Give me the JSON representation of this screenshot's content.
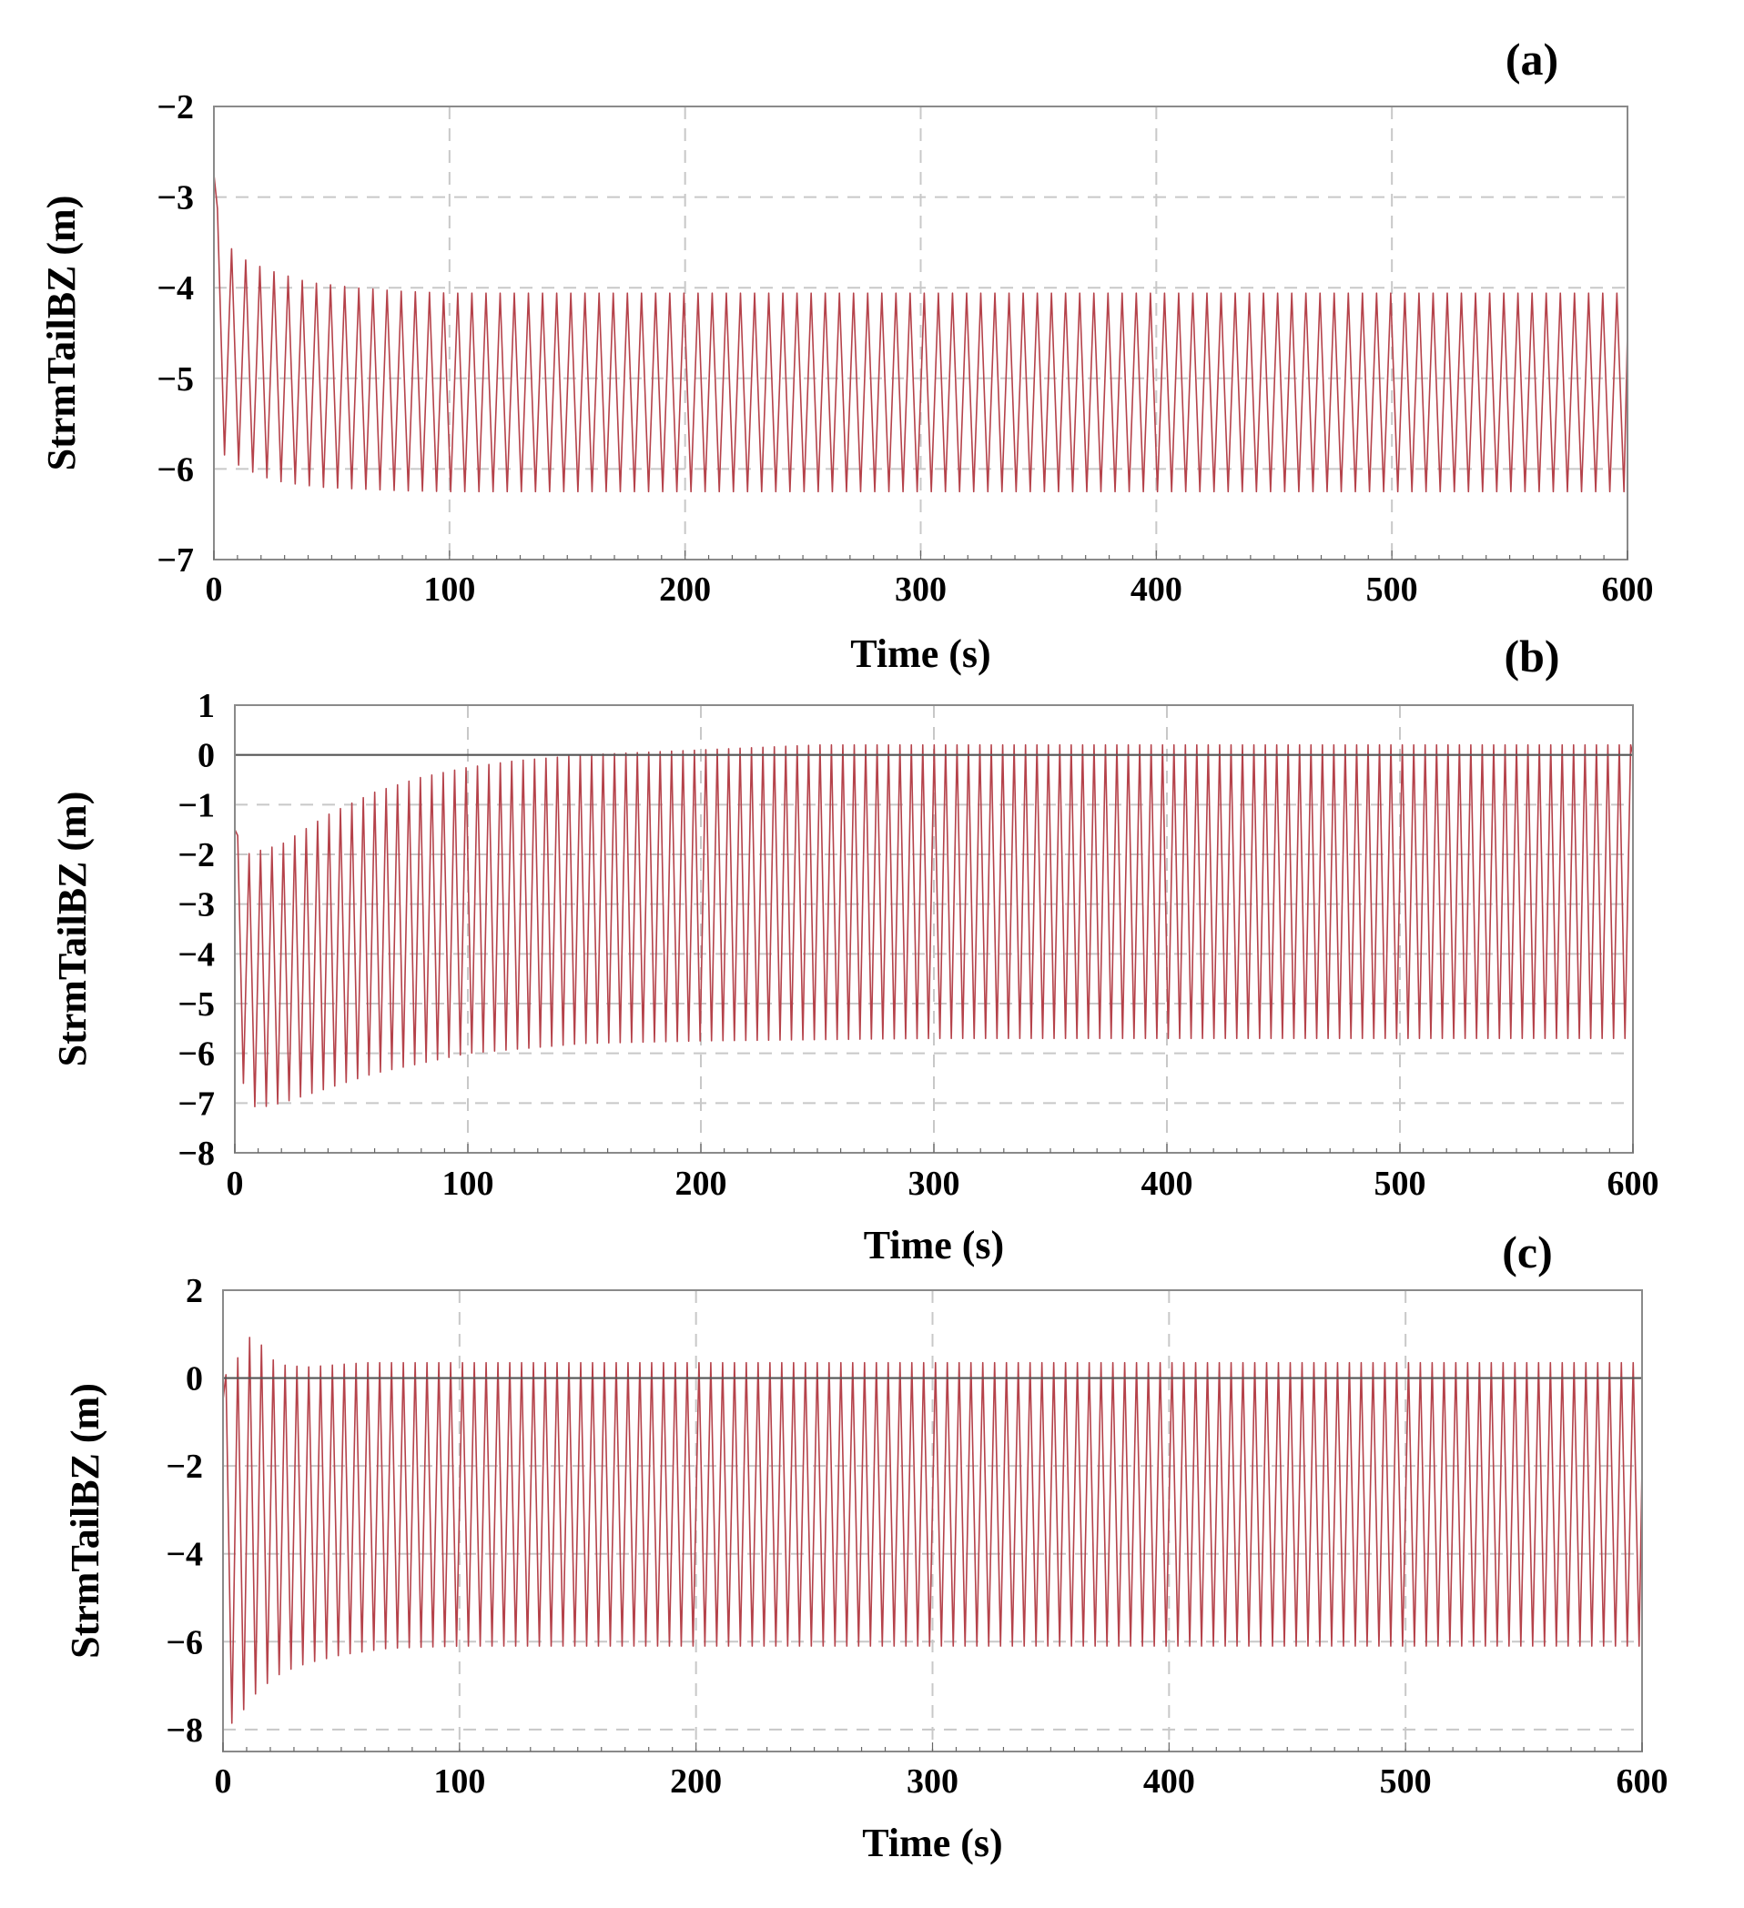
{
  "colors": {
    "series": "#b5424a",
    "grid": "#c8c8c8",
    "frame": "#8a8a8a",
    "zero_line": "#555555"
  },
  "chart_data": [
    {
      "type": "line",
      "panel_label": "(a)",
      "title": "",
      "xlabel": "Time (s)",
      "ylabel": "StrmTailBZ (m)",
      "xlim": [
        0,
        600
      ],
      "ylim": [
        -7,
        -2
      ],
      "xticks": [
        0,
        100,
        200,
        300,
        400,
        500,
        600
      ],
      "yticks": [
        -7,
        -6,
        -5,
        -4,
        -3,
        -2
      ],
      "xtick_labels": [
        "0",
        "100",
        "200",
        "300",
        "400",
        "500",
        "600"
      ],
      "ytick_labels": [
        "−7",
        "−6",
        "−5",
        "−4",
        "−3",
        "−2"
      ],
      "zero_line": false,
      "grid": true,
      "series": [
        {
          "name": "StrmTailBZ",
          "period_s": 6.0,
          "start_value": -2.75,
          "end_value": -4.5,
          "crest_envelope": {
            "t": [
              0,
              2,
              8,
              15,
              25,
              40,
              60,
              80,
              100,
              600
            ],
            "v": [
              -2.75,
              -3.25,
              -3.6,
              -3.72,
              -3.82,
              -3.94,
              -4.0,
              -4.04,
              -4.06,
              -4.06
            ]
          },
          "trough_envelope": {
            "t": [
              0,
              5,
              10,
              20,
              30,
              45,
              60,
              80,
              100,
              600
            ],
            "v": [
              -5.8,
              -5.85,
              -5.95,
              -6.08,
              -6.15,
              -6.2,
              -6.22,
              -6.24,
              -6.25,
              -6.25
            ]
          }
        }
      ]
    },
    {
      "type": "line",
      "panel_label": "(b)",
      "title": "",
      "xlabel": "Time (s)",
      "ylabel": "StrmTailBZ (m)",
      "xlim": [
        0,
        600
      ],
      "ylim": [
        -8,
        1
      ],
      "xticks": [
        0,
        100,
        200,
        300,
        400,
        500,
        600
      ],
      "yticks": [
        -8,
        -7,
        -6,
        -5,
        -4,
        -3,
        -2,
        -1,
        0,
        1
      ],
      "xtick_labels": [
        "0",
        "100",
        "200",
        "300",
        "400",
        "500",
        "600"
      ],
      "ytick_labels": [
        "−8",
        "−7",
        "−6",
        "−5",
        "−4",
        "−3",
        "−2",
        "−1",
        "0",
        "1"
      ],
      "zero_line": true,
      "grid": true,
      "series": [
        {
          "name": "StrmTailBZ",
          "period_s": 4.9,
          "start_value": -1.5,
          "end_value": 0.0,
          "crest_envelope": {
            "t": [
              0,
              5,
              20,
              40,
              60,
              80,
              100,
              120,
              150,
              200,
              250,
              600
            ],
            "v": [
              -1.5,
              -2.0,
              -1.8,
              -1.2,
              -0.75,
              -0.45,
              -0.25,
              -0.12,
              0.0,
              0.1,
              0.2,
              0.2
            ]
          },
          "trough_envelope": {
            "t": [
              0,
              5,
              10,
              20,
              40,
              60,
              80,
              100,
              150,
              200,
              300,
              600
            ],
            "v": [
              -5.5,
              -7.0,
              -7.1,
              -7.0,
              -6.7,
              -6.4,
              -6.2,
              -6.0,
              -5.8,
              -5.75,
              -5.7,
              -5.7
            ]
          }
        }
      ]
    },
    {
      "type": "line",
      "panel_label": "(c)",
      "title": "",
      "xlabel": "Time (s)",
      "ylabel": "StrmTailBZ (m)",
      "xlim": [
        0,
        600
      ],
      "ylim": [
        -8.5,
        2
      ],
      "xticks": [
        0,
        100,
        200,
        300,
        400,
        500,
        600
      ],
      "yticks": [
        -8,
        -6,
        -4,
        -2,
        0,
        2
      ],
      "xtick_labels": [
        "0",
        "100",
        "200",
        "300",
        "400",
        "500",
        "600"
      ],
      "ytick_labels": [
        "−8",
        "−6",
        "−4",
        "−2",
        "0",
        "2"
      ],
      "zero_line": true,
      "grid": true,
      "series": [
        {
          "name": "StrmTailBZ",
          "period_s": 5.0,
          "start_value": -0.5,
          "end_value": -2.0,
          "crest_envelope": {
            "t": [
              0,
              5,
              10,
              15,
              20,
              25,
              35,
              60,
              600
            ],
            "v": [
              0.0,
              0.3,
              0.95,
              0.85,
              0.45,
              0.3,
              0.25,
              0.35,
              0.35
            ]
          },
          "trough_envelope": {
            "t": [
              0,
              3,
              8,
              15,
              25,
              35,
              50,
              70,
              100,
              600
            ],
            "v": [
              -5.5,
              -7.9,
              -7.6,
              -7.1,
              -6.7,
              -6.5,
              -6.3,
              -6.15,
              -6.1,
              -6.1
            ]
          }
        }
      ]
    }
  ]
}
